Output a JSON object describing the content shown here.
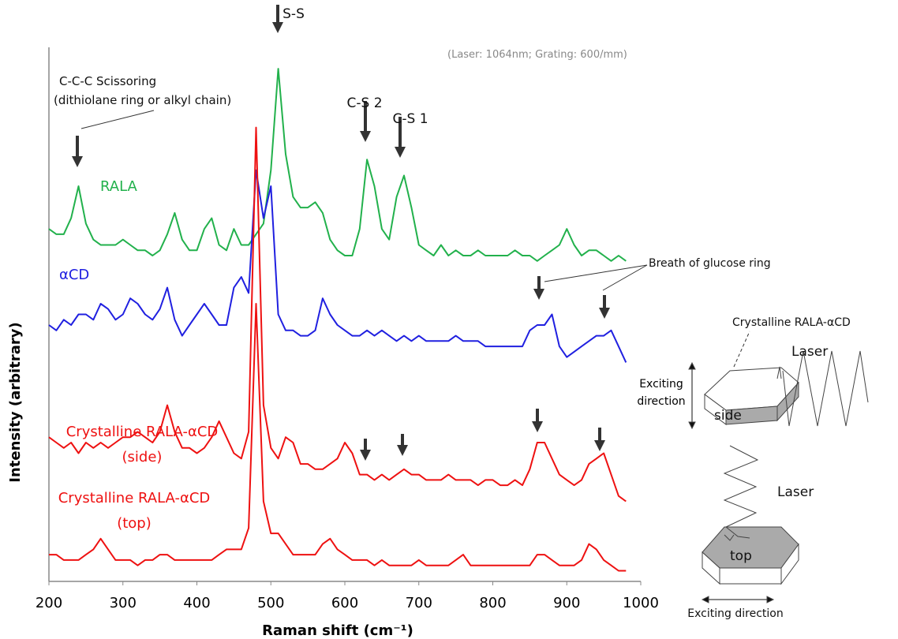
{
  "chart_data": {
    "type": "line",
    "xlabel": "Raman shift (cm⁻¹)",
    "ylabel": "Intensity (arbitrary)",
    "xlim": [
      200,
      1000
    ],
    "xticks": [
      200,
      300,
      400,
      500,
      600,
      700,
      800,
      900,
      1000
    ],
    "ylim": [
      0,
      100
    ],
    "x": [
      200,
      210,
      220,
      230,
      240,
      250,
      260,
      270,
      280,
      290,
      300,
      310,
      320,
      330,
      340,
      350,
      360,
      370,
      380,
      390,
      400,
      410,
      420,
      430,
      440,
      450,
      460,
      470,
      480,
      490,
      500,
      510,
      520,
      530,
      540,
      550,
      560,
      570,
      580,
      590,
      600,
      610,
      620,
      630,
      640,
      650,
      660,
      670,
      680,
      690,
      700,
      710,
      720,
      730,
      740,
      750,
      760,
      770,
      780,
      790,
      800,
      810,
      820,
      830,
      840,
      850,
      860,
      870,
      880,
      890,
      900,
      910,
      920,
      930,
      940,
      950,
      960,
      970,
      980
    ],
    "series": [
      {
        "name": "RALA",
        "color": "#22b14c",
        "values": [
          66,
          65,
          65,
          68,
          74,
          67,
          64,
          63,
          63,
          63,
          64,
          63,
          62,
          62,
          61,
          62,
          65,
          69,
          64,
          62,
          62,
          66,
          68,
          63,
          62,
          66,
          63,
          63,
          65,
          67,
          77,
          96,
          80,
          72,
          70,
          70,
          71,
          69,
          64,
          62,
          61,
          61,
          66,
          79,
          74,
          66,
          64,
          72,
          76,
          70,
          63,
          62,
          61,
          63,
          61,
          62,
          61,
          61,
          62,
          61,
          61,
          61,
          61,
          62,
          61,
          61,
          60,
          61,
          62,
          63,
          66,
          63,
          61,
          62,
          62,
          61,
          60,
          61,
          60
        ]
      },
      {
        "name": "αCD",
        "color": "#2020e0",
        "values": [
          48,
          47,
          49,
          48,
          50,
          50,
          49,
          52,
          51,
          49,
          50,
          53,
          52,
          50,
          49,
          51,
          55,
          49,
          46,
          48,
          50,
          52,
          50,
          48,
          48,
          55,
          57,
          54,
          77,
          68,
          74,
          50,
          47,
          47,
          46,
          46,
          47,
          53,
          50,
          48,
          47,
          46,
          46,
          47,
          46,
          47,
          46,
          45,
          46,
          45,
          46,
          45,
          45,
          45,
          45,
          46,
          45,
          45,
          45,
          44,
          44,
          44,
          44,
          44,
          44,
          47,
          48,
          48,
          50,
          44,
          42,
          43,
          44,
          45,
          46,
          46,
          47,
          44,
          41
        ]
      },
      {
        "name": "Crystalline RALA-αCD (side)",
        "color": "#ee1111",
        "values": [
          27,
          26,
          25,
          26,
          24,
          26,
          25,
          26,
          25,
          26,
          27,
          27,
          28,
          27,
          26,
          28,
          33,
          28,
          25,
          25,
          24,
          25,
          27,
          30,
          27,
          24,
          23,
          28,
          85,
          33,
          25,
          23,
          27,
          26,
          22,
          22,
          21,
          21,
          22,
          23,
          26,
          24,
          20,
          20,
          19,
          20,
          19,
          20,
          21,
          20,
          20,
          19,
          19,
          19,
          20,
          19,
          19,
          19,
          18,
          19,
          19,
          18,
          18,
          19,
          18,
          21,
          26,
          26,
          23,
          20,
          19,
          18,
          19,
          22,
          23,
          24,
          20,
          16,
          15
        ]
      },
      {
        "name": "Crystalline RALA-αCD (top)",
        "color": "#ee1111",
        "values": [
          5,
          5,
          4,
          4,
          4,
          5,
          6,
          8,
          6,
          4,
          4,
          4,
          3,
          4,
          4,
          5,
          5,
          4,
          4,
          4,
          4,
          4,
          4,
          5,
          6,
          6,
          6,
          10,
          52,
          15,
          9,
          9,
          7,
          5,
          5,
          5,
          5,
          7,
          8,
          6,
          5,
          4,
          4,
          4,
          3,
          4,
          3,
          3,
          3,
          3,
          4,
          3,
          3,
          3,
          3,
          4,
          5,
          3,
          3,
          3,
          3,
          3,
          3,
          3,
          3,
          3,
          5,
          5,
          4,
          3,
          3,
          3,
          4,
          7,
          6,
          4,
          3,
          2,
          2
        ]
      }
    ],
    "annotations": [
      "S-S",
      "(Laser: 1064nm; Grating: 600/mm)",
      "C-C-C Scissoring",
      "(dithiolane ring or alkyl chain)",
      "C-S 2",
      "C-S 1",
      "Breath of glucose ring",
      "Crystalline RALA-αCD",
      "Laser",
      "Exciting direction",
      "side",
      "Laser",
      "top",
      "Exciting direction"
    ]
  }
}
